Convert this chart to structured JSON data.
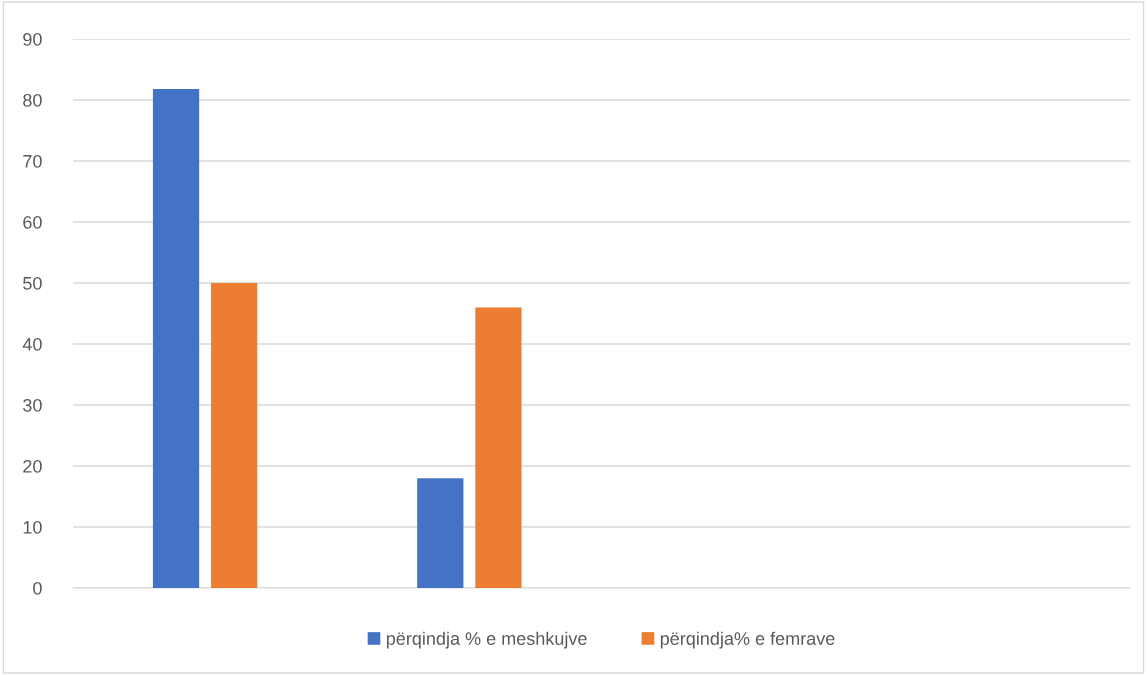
{
  "chart_data": {
    "type": "bar",
    "categories": [
      null,
      null,
      null,
      null
    ],
    "series": [
      {
        "name": "përqindja % e meshkujve",
        "color": "#4472c4",
        "values": [
          81.8,
          18,
          null,
          null
        ]
      },
      {
        "name": "përqindja% e femrave",
        "color": "#ed7d31",
        "values": [
          50,
          46,
          null,
          null
        ]
      }
    ],
    "ylim": [
      0,
      90
    ],
    "yticks": [
      0,
      10,
      20,
      30,
      40,
      50,
      60,
      70,
      80,
      90
    ],
    "grid": "y",
    "legend": "bottom"
  }
}
